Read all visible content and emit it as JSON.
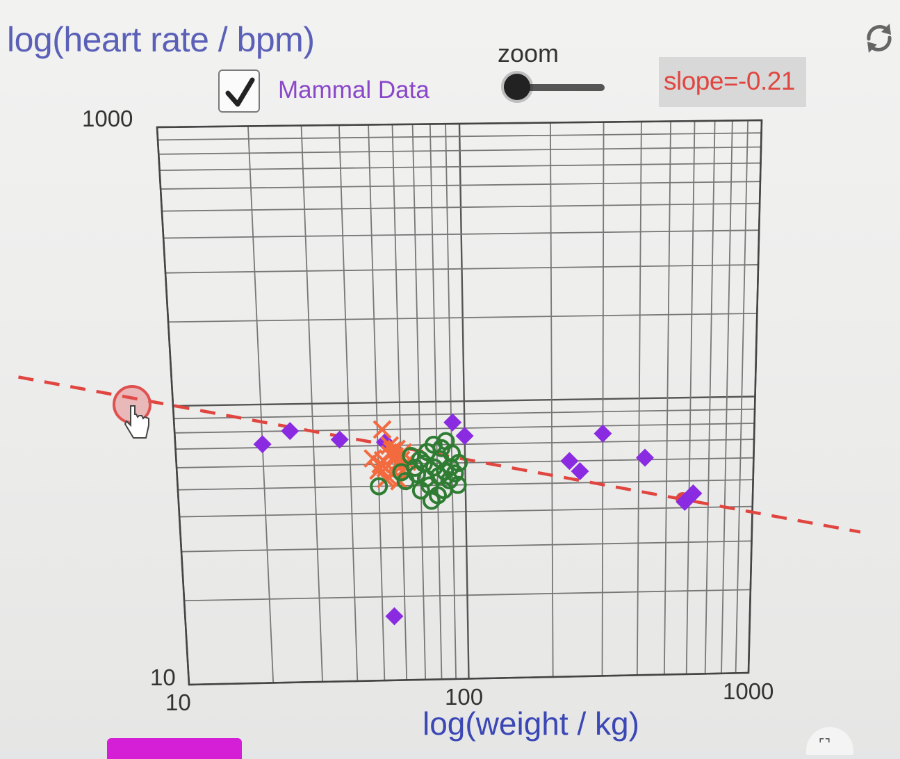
{
  "reset_icon": "refresh-icon",
  "controls": {
    "checkbox_checked": true,
    "mammal_label": "Mammal Data",
    "zoom_label": "zoom",
    "zoom_value": 0.0,
    "slope_text": "slope=-0.21"
  },
  "colors": {
    "mammal": "#8a2be2",
    "orange_series": "#f26a3d",
    "green_series": "#2e7d32",
    "fit_line": "#e0463f"
  },
  "chart_data": {
    "type": "scatter",
    "xlabel": "log(weight / kg)",
    "ylabel": "log(heart rate / bpm)",
    "x_scale": "log",
    "y_scale": "log",
    "xlim": [
      10,
      1000
    ],
    "ylim": [
      10,
      1000
    ],
    "x_ticks": [
      "10",
      "100",
      "1000"
    ],
    "y_ticks": [
      "1000",
      "10"
    ],
    "grid": true,
    "series": [
      {
        "marker": "diamond",
        "color": "#8a2be2",
        "points": [
          [
            20,
            72
          ],
          [
            25,
            80
          ],
          [
            37,
            74
          ],
          [
            53,
            72
          ],
          [
            91,
            84
          ],
          [
            100,
            75
          ],
          [
            230,
            60
          ],
          [
            250,
            55
          ],
          [
            300,
            75
          ],
          [
            420,
            61
          ],
          [
            580,
            42
          ],
          [
            620,
            45
          ],
          [
            55,
            17
          ]
        ]
      },
      {
        "marker": "x",
        "color": "#f26a3d",
        "points": [
          [
            52,
            80
          ],
          [
            48,
            63
          ],
          [
            52,
            62
          ],
          [
            55,
            65
          ],
          [
            58,
            60
          ],
          [
            53,
            58
          ],
          [
            57,
            56
          ],
          [
            54,
            54
          ],
          [
            60,
            62
          ],
          [
            56,
            67
          ],
          [
            59,
            52
          ],
          [
            55,
            70
          ],
          [
            62,
            58
          ],
          [
            51,
            60
          ],
          [
            57,
            64
          ],
          [
            61,
            66
          ],
          [
            53,
            53
          ],
          [
            58,
            68
          ],
          [
            63,
            61
          ],
          [
            50,
            57
          ]
        ]
      },
      {
        "marker": "circle",
        "color": "#2e7d32",
        "points": [
          [
            50,
            50
          ],
          [
            62,
            52
          ],
          [
            68,
            55
          ],
          [
            72,
            60
          ],
          [
            78,
            58
          ],
          [
            82,
            62
          ],
          [
            85,
            56
          ],
          [
            75,
            50
          ],
          [
            70,
            48
          ],
          [
            80,
            46
          ],
          [
            88,
            52
          ],
          [
            92,
            55
          ],
          [
            95,
            60
          ],
          [
            65,
            64
          ],
          [
            74,
            66
          ],
          [
            83,
            68
          ],
          [
            90,
            65
          ],
          [
            78,
            70
          ],
          [
            86,
            72
          ],
          [
            70,
            62
          ],
          [
            67,
            58
          ],
          [
            76,
            44
          ],
          [
            84,
            48
          ],
          [
            94,
            50
          ],
          [
            60,
            56
          ],
          [
            73,
            53
          ],
          [
            89,
            58
          ],
          [
            81,
            54
          ]
        ]
      }
    ],
    "fit_line": {
      "slope": -0.21,
      "points": [
        [
          570,
          43
        ]
      ]
    }
  }
}
